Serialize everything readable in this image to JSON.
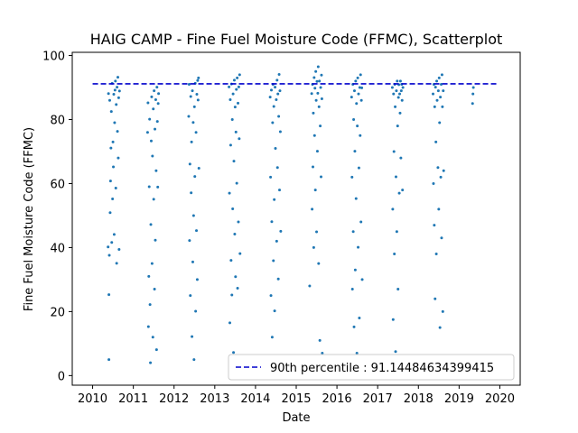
{
  "chart_data": {
    "type": "scatter",
    "title": "HAIG CAMP - Fine Fuel Moisture Code (FFMC), Scatterplot",
    "xlabel": "Date",
    "ylabel": "Fine Fuel Moisture Code (FFMC)",
    "xlim": [
      2009.5,
      2020.5
    ],
    "ylim": [
      -3,
      101
    ],
    "xticks": [
      "2010",
      "2011",
      "2012",
      "2013",
      "2014",
      "2015",
      "2016",
      "2017",
      "2018",
      "2019",
      "2020"
    ],
    "yticks": [
      "0",
      "20",
      "40",
      "60",
      "80",
      "100"
    ],
    "grid": false,
    "legend_position": "bottom-right",
    "series": [
      {
        "color": "#1f77b4",
        "points": [
          [
            2010.38,
            40.2
          ],
          [
            2010.39,
            88.1
          ],
          [
            2010.4,
            5.0
          ],
          [
            2010.4,
            25.3
          ],
          [
            2010.41,
            37.6
          ],
          [
            2010.42,
            86.0
          ],
          [
            2010.43,
            50.9
          ],
          [
            2010.44,
            60.8
          ],
          [
            2010.45,
            71.1
          ],
          [
            2010.46,
            82.5
          ],
          [
            2010.47,
            41.6
          ],
          [
            2010.48,
            91.3
          ],
          [
            2010.49,
            55.2
          ],
          [
            2010.5,
            73.0
          ],
          [
            2010.51,
            65.2
          ],
          [
            2010.52,
            87.9
          ],
          [
            2010.53,
            44.1
          ],
          [
            2010.54,
            79.0
          ],
          [
            2010.55,
            89.2
          ],
          [
            2010.56,
            92.0
          ],
          [
            2010.57,
            58.6
          ],
          [
            2010.58,
            84.7
          ],
          [
            2010.59,
            35.1
          ],
          [
            2010.6,
            90.1
          ],
          [
            2010.61,
            76.3
          ],
          [
            2010.62,
            93.2
          ],
          [
            2010.63,
            68.0
          ],
          [
            2010.64,
            86.8
          ],
          [
            2010.65,
            39.4
          ],
          [
            2010.66,
            88.9
          ],
          [
            2011.35,
            76.0
          ],
          [
            2011.36,
            85.2
          ],
          [
            2011.37,
            15.3
          ],
          [
            2011.38,
            31.0
          ],
          [
            2011.39,
            59.0
          ],
          [
            2011.4,
            80.1
          ],
          [
            2011.41,
            22.2
          ],
          [
            2011.42,
            4.0
          ],
          [
            2011.43,
            47.2
          ],
          [
            2011.44,
            73.3
          ],
          [
            2011.45,
            87.1
          ],
          [
            2011.46,
            35.0
          ],
          [
            2011.47,
            68.6
          ],
          [
            2011.48,
            12.0
          ],
          [
            2011.49,
            83.3
          ],
          [
            2011.5,
            55.1
          ],
          [
            2011.51,
            89.0
          ],
          [
            2011.52,
            27.0
          ],
          [
            2011.53,
            77.0
          ],
          [
            2011.54,
            42.3
          ],
          [
            2011.55,
            86.2
          ],
          [
            2011.56,
            64.0
          ],
          [
            2011.57,
            8.1
          ],
          [
            2011.58,
            90.1
          ],
          [
            2011.59,
            79.4
          ],
          [
            2011.6,
            58.9
          ],
          [
            2011.61,
            85.0
          ],
          [
            2011.62,
            88.1
          ],
          [
            2012.36,
            81.0
          ],
          [
            2012.37,
            91.0
          ],
          [
            2012.38,
            42.2
          ],
          [
            2012.39,
            66.1
          ],
          [
            2012.4,
            25.0
          ],
          [
            2012.41,
            87.2
          ],
          [
            2012.42,
            57.1
          ],
          [
            2012.43,
            73.0
          ],
          [
            2012.44,
            12.2
          ],
          [
            2012.45,
            89.0
          ],
          [
            2012.46,
            35.5
          ],
          [
            2012.47,
            79.1
          ],
          [
            2012.48,
            50.0
          ],
          [
            2012.49,
            5.0
          ],
          [
            2012.5,
            84.0
          ],
          [
            2012.51,
            62.2
          ],
          [
            2012.52,
            91.3
          ],
          [
            2012.53,
            20.1
          ],
          [
            2012.54,
            76.0
          ],
          [
            2012.55,
            45.3
          ],
          [
            2012.56,
            87.9
          ],
          [
            2012.57,
            30.0
          ],
          [
            2012.58,
            92.2
          ],
          [
            2012.59,
            86.1
          ],
          [
            2012.6,
            93.0
          ],
          [
            2012.61,
            64.8
          ],
          [
            2013.35,
            90.2
          ],
          [
            2013.36,
            57.0
          ],
          [
            2013.37,
            16.5
          ],
          [
            2013.38,
            86.2
          ],
          [
            2013.39,
            72.0
          ],
          [
            2013.4,
            36.0
          ],
          [
            2013.41,
            91.1
          ],
          [
            2013.42,
            25.2
          ],
          [
            2013.43,
            80.0
          ],
          [
            2013.44,
            52.1
          ],
          [
            2013.45,
            88.0
          ],
          [
            2013.46,
            7.2
          ],
          [
            2013.47,
            67.0
          ],
          [
            2013.48,
            92.3
          ],
          [
            2013.49,
            44.2
          ],
          [
            2013.5,
            83.9
          ],
          [
            2013.51,
            30.9
          ],
          [
            2013.52,
            76.1
          ],
          [
            2013.53,
            89.4
          ],
          [
            2013.54,
            60.1
          ],
          [
            2013.55,
            93.0
          ],
          [
            2013.56,
            27.3
          ],
          [
            2013.57,
            85.1
          ],
          [
            2013.58,
            48.0
          ],
          [
            2013.59,
            90.2
          ],
          [
            2013.6,
            74.0
          ],
          [
            2013.61,
            94.0
          ],
          [
            2013.62,
            38.1
          ],
          [
            2014.36,
            87.0
          ],
          [
            2014.37,
            62.0
          ],
          [
            2014.38,
            25.0
          ],
          [
            2014.39,
            89.2
          ],
          [
            2014.4,
            48.1
          ],
          [
            2014.41,
            12.0
          ],
          [
            2014.42,
            79.0
          ],
          [
            2014.43,
            91.0
          ],
          [
            2014.44,
            35.9
          ],
          [
            2014.45,
            84.1
          ],
          [
            2014.46,
            55.0
          ],
          [
            2014.47,
            20.2
          ],
          [
            2014.48,
            90.1
          ],
          [
            2014.49,
            71.0
          ],
          [
            2014.5,
            6.3
          ],
          [
            2014.51,
            86.2
          ],
          [
            2014.52,
            42.0
          ],
          [
            2014.53,
            92.3
          ],
          [
            2014.54,
            65.0
          ],
          [
            2014.55,
            88.0
          ],
          [
            2014.56,
            30.2
          ],
          [
            2014.57,
            81.0
          ],
          [
            2014.58,
            94.1
          ],
          [
            2014.59,
            58.0
          ],
          [
            2014.6,
            89.0
          ],
          [
            2014.61,
            76.2
          ],
          [
            2014.62,
            45.1
          ],
          [
            2015.33,
            28.0
          ],
          [
            2015.38,
            88.1
          ],
          [
            2015.39,
            52.0
          ],
          [
            2015.4,
            91.0
          ],
          [
            2015.41,
            65.2
          ],
          [
            2015.42,
            82.0
          ],
          [
            2015.43,
            40.0
          ],
          [
            2015.44,
            93.1
          ],
          [
            2015.45,
            75.0
          ],
          [
            2015.46,
            89.8
          ],
          [
            2015.47,
            58.0
          ],
          [
            2015.48,
            95.0
          ],
          [
            2015.49,
            86.0
          ],
          [
            2015.5,
            44.9
          ],
          [
            2015.51,
            91.9
          ],
          [
            2015.52,
            70.1
          ],
          [
            2015.53,
            88.2
          ],
          [
            2015.54,
            96.5
          ],
          [
            2015.55,
            35.0
          ],
          [
            2015.56,
            84.0
          ],
          [
            2015.57,
            92.0
          ],
          [
            2015.58,
            11.0
          ],
          [
            2015.59,
            78.0
          ],
          [
            2015.6,
            90.0
          ],
          [
            2015.61,
            62.1
          ],
          [
            2015.62,
            93.9
          ],
          [
            2015.63,
            86.5
          ],
          [
            2015.64,
            7.0
          ],
          [
            2016.36,
            87.0
          ],
          [
            2016.37,
            62.0
          ],
          [
            2016.38,
            27.0
          ],
          [
            2016.39,
            91.0
          ],
          [
            2016.4,
            45.0
          ],
          [
            2016.41,
            80.0
          ],
          [
            2016.42,
            15.2
          ],
          [
            2016.43,
            89.0
          ],
          [
            2016.44,
            70.1
          ],
          [
            2016.45,
            33.0
          ],
          [
            2016.46,
            92.0
          ],
          [
            2016.47,
            55.3
          ],
          [
            2016.48,
            85.0
          ],
          [
            2016.49,
            7.0
          ],
          [
            2016.5,
            78.0
          ],
          [
            2016.51,
            93.0
          ],
          [
            2016.52,
            40.1
          ],
          [
            2016.53,
            88.0
          ],
          [
            2016.54,
            64.9
          ],
          [
            2016.55,
            18.0
          ],
          [
            2016.56,
            90.0
          ],
          [
            2016.57,
            75.0
          ],
          [
            2016.58,
            94.0
          ],
          [
            2016.59,
            48.0
          ],
          [
            2016.6,
            86.0
          ],
          [
            2016.61,
            89.9
          ],
          [
            2016.62,
            30.0
          ],
          [
            2017.36,
            90.0
          ],
          [
            2017.37,
            52.0
          ],
          [
            2017.38,
            17.5
          ],
          [
            2017.39,
            88.0
          ],
          [
            2017.4,
            70.0
          ],
          [
            2017.41,
            38.0
          ],
          [
            2017.42,
            91.0
          ],
          [
            2017.43,
            84.0
          ],
          [
            2017.44,
            7.5
          ],
          [
            2017.45,
            62.1
          ],
          [
            2017.46,
            89.0
          ],
          [
            2017.47,
            45.0
          ],
          [
            2017.48,
            92.0
          ],
          [
            2017.49,
            78.0
          ],
          [
            2017.5,
            27.0
          ],
          [
            2017.51,
            86.9
          ],
          [
            2017.52,
            90.9
          ],
          [
            2017.53,
            57.0
          ],
          [
            2017.54,
            88.0
          ],
          [
            2017.55,
            82.0
          ],
          [
            2017.56,
            92.0
          ],
          [
            2017.57,
            68.0
          ],
          [
            2017.58,
            89.0
          ],
          [
            2017.59,
            91.0
          ],
          [
            2017.6,
            86.0
          ],
          [
            2017.61,
            58.0
          ],
          [
            2017.62,
            90.0
          ],
          [
            2018.36,
            88.0
          ],
          [
            2018.37,
            60.0
          ],
          [
            2018.38,
            91.0
          ],
          [
            2018.39,
            47.0
          ],
          [
            2018.4,
            84.0
          ],
          [
            2018.41,
            24.0
          ],
          [
            2018.42,
            90.1
          ],
          [
            2018.43,
            73.0
          ],
          [
            2018.44,
            38.0
          ],
          [
            2018.45,
            92.0
          ],
          [
            2018.46,
            86.0
          ],
          [
            2018.47,
            6.0
          ],
          [
            2018.48,
            65.0
          ],
          [
            2018.49,
            89.0
          ],
          [
            2018.5,
            52.0
          ],
          [
            2018.51,
            93.0
          ],
          [
            2018.52,
            79.0
          ],
          [
            2018.53,
            15.0
          ],
          [
            2018.54,
            87.0
          ],
          [
            2018.55,
            62.0
          ],
          [
            2018.56,
            91.0
          ],
          [
            2018.57,
            43.0
          ],
          [
            2018.58,
            94.0
          ],
          [
            2018.59,
            84.0
          ],
          [
            2018.6,
            20.0
          ],
          [
            2018.61,
            89.0
          ],
          [
            2018.62,
            64.0
          ],
          [
            2019.33,
            85.0
          ],
          [
            2019.34,
            88.0
          ],
          [
            2019.35,
            90.0
          ]
        ]
      }
    ],
    "reference_line": {
      "y": 91.14484634399415,
      "label": "90th percentile : 91.14484634399415",
      "color": "#0000cc",
      "style": "dashed",
      "xrange": [
        2010.0,
        2019.95
      ]
    }
  }
}
